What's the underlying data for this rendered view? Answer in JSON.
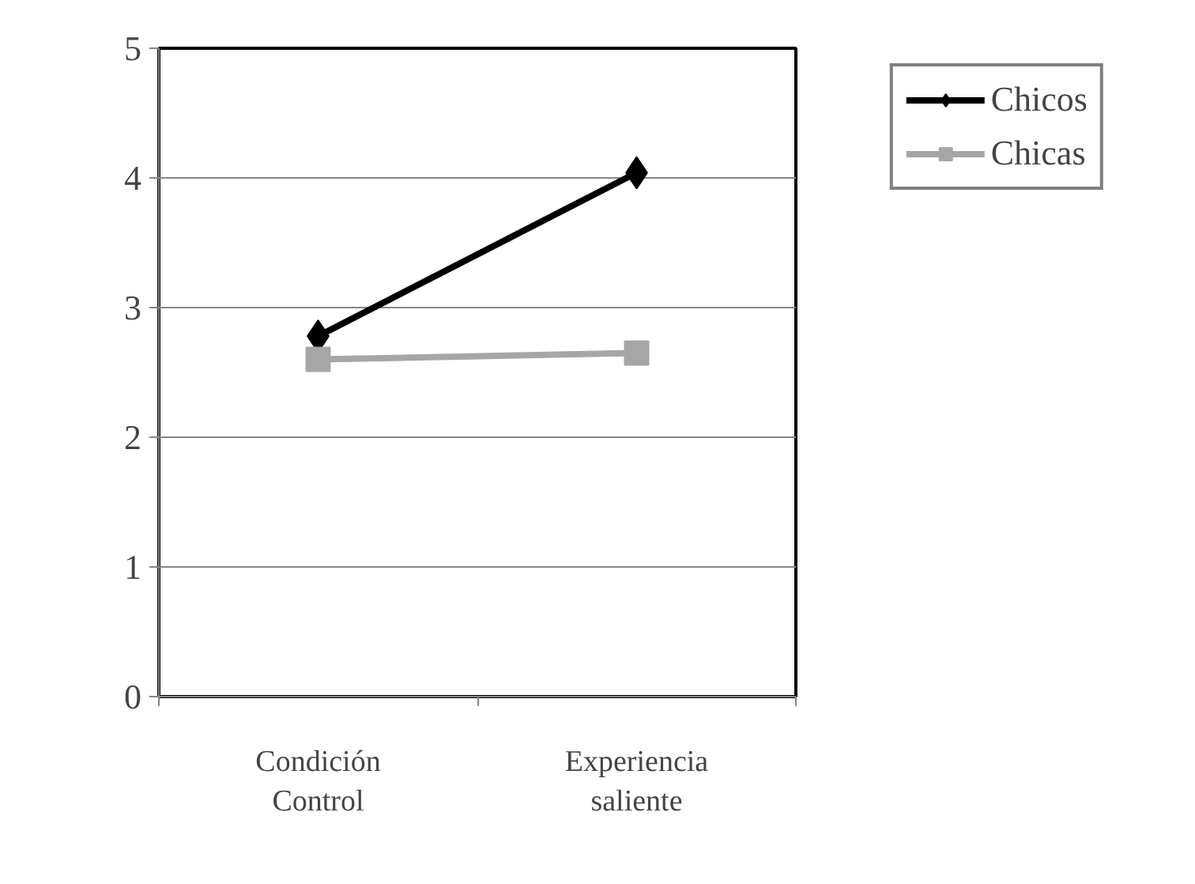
{
  "chart_data": {
    "type": "line",
    "categories": [
      "Condición Control",
      "Experiencia saliente"
    ],
    "series": [
      {
        "name": "Chicos",
        "color": "#000000",
        "marker": "diamond",
        "values": [
          2.78,
          4.04
        ]
      },
      {
        "name": "Chicas",
        "color": "#a6a6a6",
        "marker": "square",
        "values": [
          2.6,
          2.65
        ]
      }
    ],
    "ylim": [
      0,
      5
    ],
    "yticks": [
      0,
      1,
      2,
      3,
      4,
      5
    ],
    "grid": "y",
    "legend": "top right",
    "line_style": "solid"
  }
}
